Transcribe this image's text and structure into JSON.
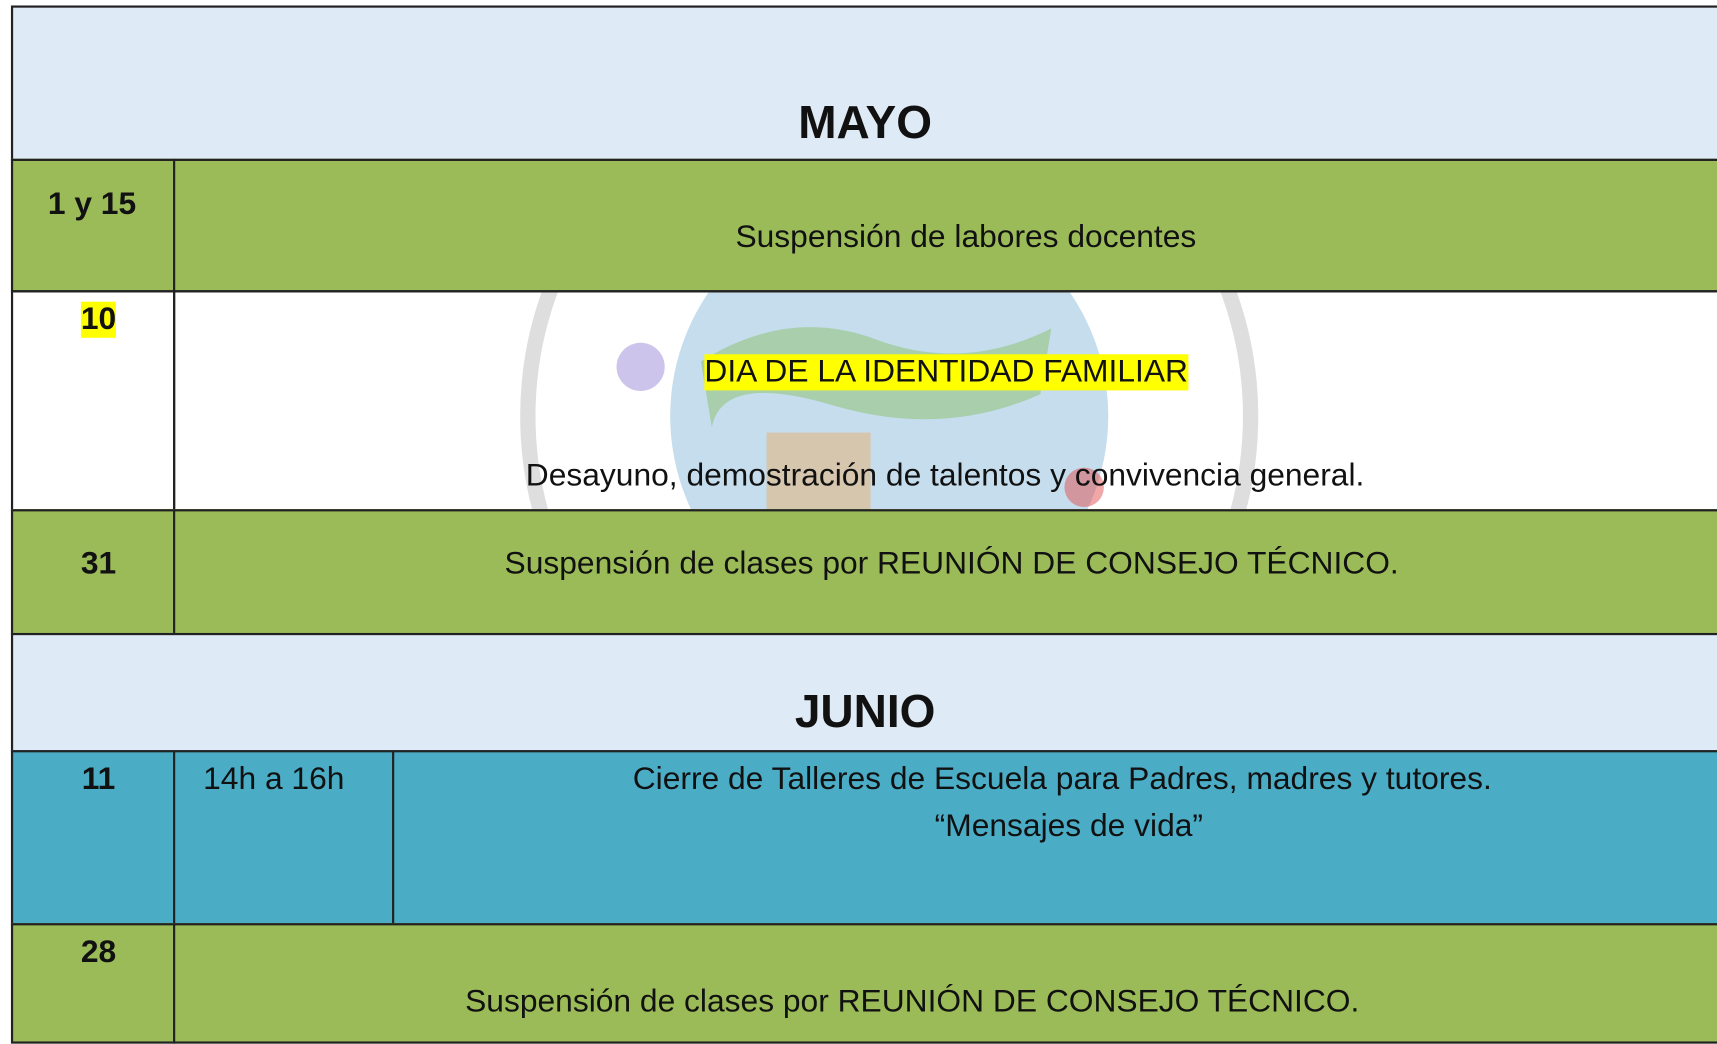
{
  "sections": [
    {
      "month": "MAYO",
      "rows": [
        {
          "date": "1 y 15",
          "lines": [
            "Suspensión de labores docentes"
          ]
        },
        {
          "date": "10",
          "lines": [
            "DIA DE LA IDENTIDAD FAMILIAR",
            "Desayuno, demostración de talentos y convivencia general."
          ]
        },
        {
          "date": "31",
          "lines": [
            "Suspensión de clases por REUNIÓN DE CONSEJO TÉCNICO."
          ]
        }
      ]
    },
    {
      "month": "JUNIO",
      "rows": [
        {
          "date": "11",
          "time": "14h a 16h",
          "lines": [
            "Cierre de Talleres de Escuela para Padres, madres y tutores.",
            "“Mensajes de vida”"
          ]
        },
        {
          "date": "28",
          "lines": [
            "Suspensión de clases por REUNIÓN DE CONSEJO TÉCNICO."
          ]
        }
      ]
    }
  ]
}
